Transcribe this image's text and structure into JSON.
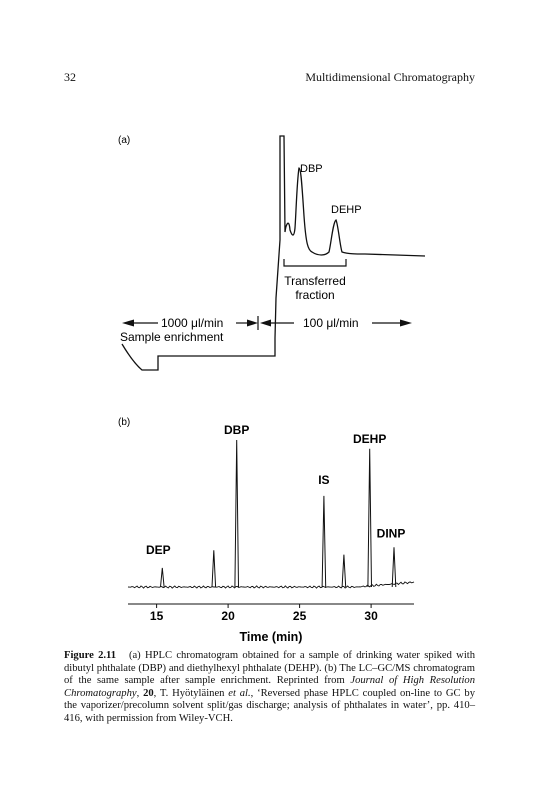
{
  "header": {
    "page_number": "32",
    "running_title": "Multidimensional Chromatography"
  },
  "figure": {
    "caption": {
      "label": "Figure 2.11",
      "text_before_italic": "(a) HPLC chromatogram obtained for a sample of drinking water spiked with dibutyl phthalate (DBP) and diethylhexyl phthalate (DEHP). (b) The LC–GC/MS chromatogram of the same sample after sample enrichment. Reprinted from ",
      "journal_italic": "Journal of High Resolution Chromatography",
      "volume_bold": "20",
      "author_mid": ", T. Hyötyläinen ",
      "etal_italic": "et al.",
      "text_after": ", ‘Reversed phase HPLC coupled on-line to GC by the vaporizer/precolumn solvent split/gas discharge; analysis of phthalates in water’, pp. 410–416, with permission from Wiley-VCH."
    }
  },
  "chart_data": [
    {
      "panel": "(a)",
      "type": "line",
      "title": "",
      "xlabel": "",
      "ylabel": "",
      "peak_labels": [
        "DBP",
        "DEHP"
      ],
      "annotations": {
        "transferred_line1": "Transferred",
        "transferred_line2": "fraction",
        "flow_left": "1000 μl/min",
        "sample_enrichment": "Sample enrichment",
        "flow_right": "100 μl/min"
      }
    },
    {
      "panel": "(b)",
      "type": "line",
      "title": "",
      "xlabel": "Time (min)",
      "ylabel": "",
      "xlim": [
        13,
        33
      ],
      "x_ticks": [
        15,
        20,
        25,
        30
      ],
      "peaks": [
        {
          "label": "DEP",
          "time": 15.4,
          "height": 0.13
        },
        {
          "label": "",
          "time": 19.0,
          "height": 0.25
        },
        {
          "label": "DBP",
          "time": 20.6,
          "height": 1.0
        },
        {
          "label": "IS",
          "time": 26.7,
          "height": 0.62
        },
        {
          "label": "",
          "time": 28.1,
          "height": 0.22
        },
        {
          "label": "DEHP",
          "time": 29.9,
          "height": 0.94
        },
        {
          "label": "DINP",
          "time": 31.6,
          "height": 0.27
        }
      ]
    }
  ]
}
